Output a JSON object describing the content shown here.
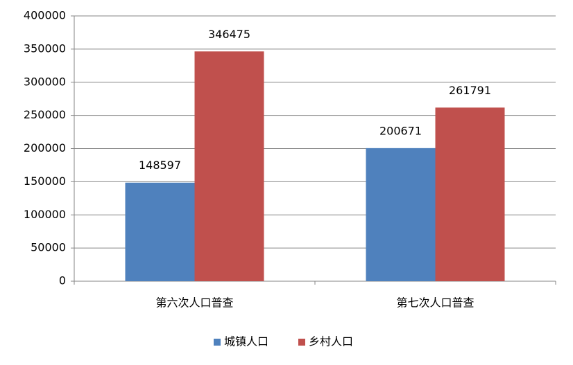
{
  "chart_data": {
    "type": "bar",
    "categories": [
      "第六次人口普查",
      "第七次人口普查"
    ],
    "series": [
      {
        "name": "城镇人口",
        "color": "#4f81bd",
        "values": [
          148597,
          200671
        ]
      },
      {
        "name": "乡村人口",
        "color": "#c0504d",
        "values": [
          346475,
          261791
        ]
      }
    ],
    "ylim": [
      0,
      400000
    ],
    "yticks": [
      0,
      50000,
      100000,
      150000,
      200000,
      250000,
      300000,
      350000,
      400000
    ],
    "grid": true,
    "legend": "bottom"
  }
}
